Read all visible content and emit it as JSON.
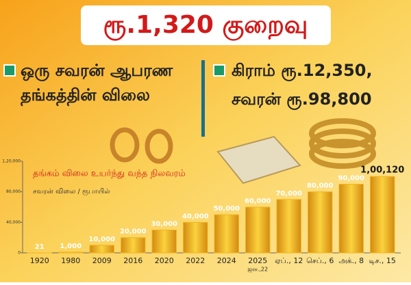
{
  "header": {
    "title": "ரூ.1,320 குறைவு",
    "left_text": [
      "ஒரு சவரன் ஆபரண",
      "தங்கத்தின் விலை"
    ],
    "right_text": [
      "கிராம் ரூ.12,350,",
      "சவரன் ரூ.98,800"
    ]
  },
  "chart_data": {
    "type": "bar",
    "title": "தங்கம் விலை உயர்ந்து வந்த நிலவரம்",
    "subtitle": "சவரன் விலை / ரூபாயில்",
    "categories": [
      "1920",
      "1980",
      "2009",
      "2016",
      "2020",
      "2022",
      "2024",
      "2025",
      "ஏப்., 12",
      "செப்., 6",
      "அக்., 8",
      "டிச., 15"
    ],
    "category_sublabels": [
      null,
      null,
      null,
      null,
      null,
      null,
      null,
      "ஜன.,22",
      null,
      null,
      null,
      null
    ],
    "values": [
      21,
      1000,
      10000,
      20000,
      30000,
      40000,
      50000,
      60000,
      70000,
      80000,
      90000,
      100120
    ],
    "value_labels": [
      "21",
      "1,000",
      "10,000",
      "20,000",
      "30,000",
      "40,000",
      "50,000",
      "60,000",
      "70,000",
      "80,000",
      "90,000",
      "1,00,120"
    ],
    "color": "#f2b51e",
    "ylim": [
      0,
      120000
    ],
    "yticks": [
      0,
      {
        "value": 40000,
        "label": "40,000"
      },
      {
        "value": 80000,
        "label": "80,000"
      },
      {
        "value": 120000,
        "label": "1,20,000"
      }
    ],
    "grid": false
  }
}
